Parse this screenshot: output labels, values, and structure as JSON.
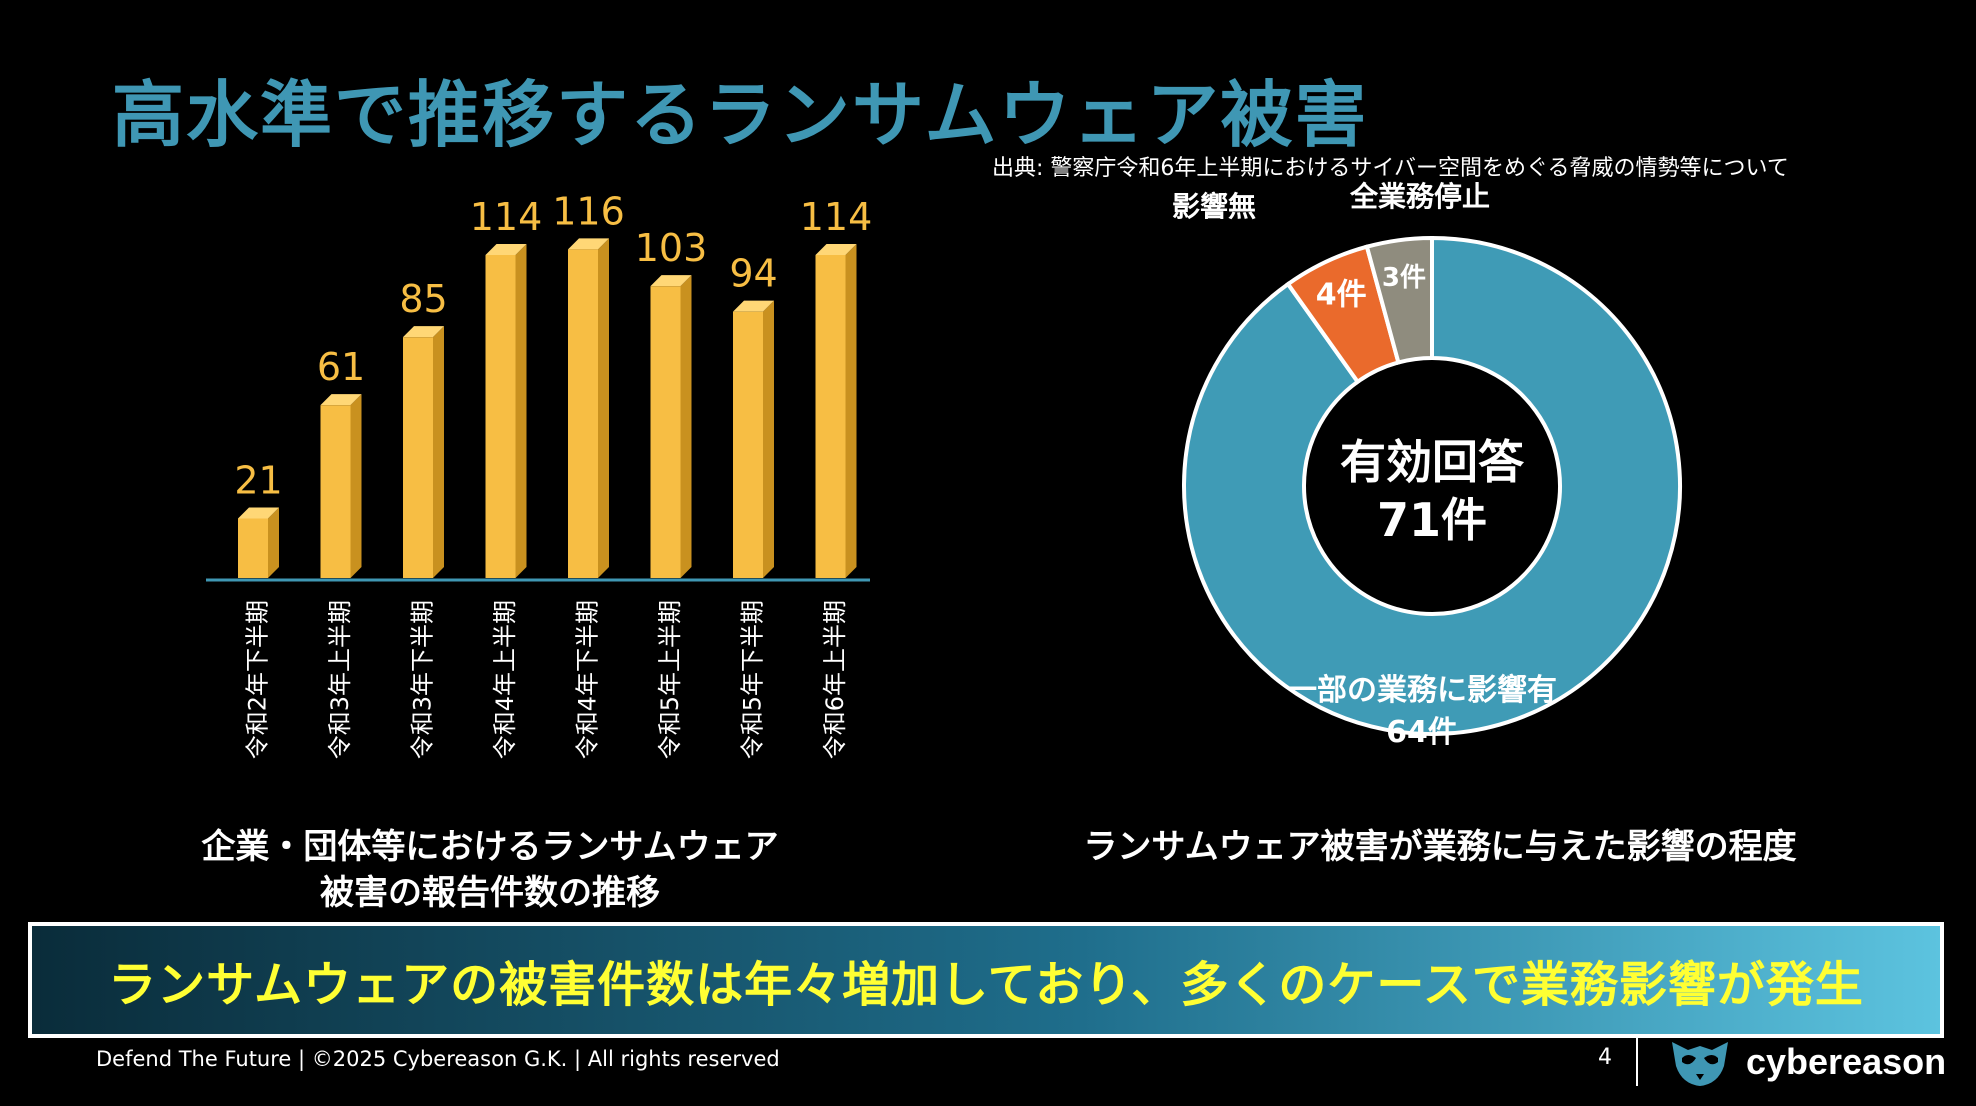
{
  "slide": {
    "title": "高水準で推移するランサムウェア被害",
    "source": "出典: 警察庁令和6年上半期におけるサイバー空間をめぐる脅威の情勢等について",
    "left_caption_line1": "企業・団体等におけるランサムウェア",
    "left_caption_line2": "被害の報告件数の推移",
    "right_caption": "ランサムウェア被害が業務に与えた影響の程度",
    "banner": "ランサムウェアの被害件数は年々増加しており、多くのケースで業務影響が発生",
    "footer": "Defend The Future | ©2025 Cybereason G.K. | All rights reserved",
    "page_number": "4",
    "logo_text": "cybereason"
  },
  "chart_data": [
    {
      "type": "bar",
      "categories": [
        "令和2年下半期",
        "令和3年上半期",
        "令和3年下半期",
        "令和4年上半期",
        "令和4年下半期",
        "令和5年上半期",
        "令和5年下半期",
        "令和6年上半期"
      ],
      "values": [
        21,
        61,
        85,
        114,
        116,
        103,
        94,
        114
      ],
      "title": "",
      "xlabel": "",
      "ylabel": "",
      "ylim": [
        0,
        120
      ],
      "grid": false,
      "colors": {
        "bar": "#f7be44",
        "bar_side": "#c9911f",
        "bar_top": "#ffd776",
        "label": "#f7be44",
        "axis": "#3f97b4"
      }
    },
    {
      "type": "pie",
      "donut": true,
      "center_label_line1": "有効回答",
      "center_label_line2": "71件",
      "slices": [
        {
          "name": "一部の業務に影響有",
          "value": 64,
          "value_label": "64件",
          "color": "#3f9bb6"
        },
        {
          "name": "影響無",
          "value": 4,
          "value_label": "4件",
          "color": "#ea6a2c"
        },
        {
          "name": "全業務停止",
          "value": 3,
          "value_label": "3件",
          "color": "#8f8c7e"
        }
      ]
    }
  ]
}
